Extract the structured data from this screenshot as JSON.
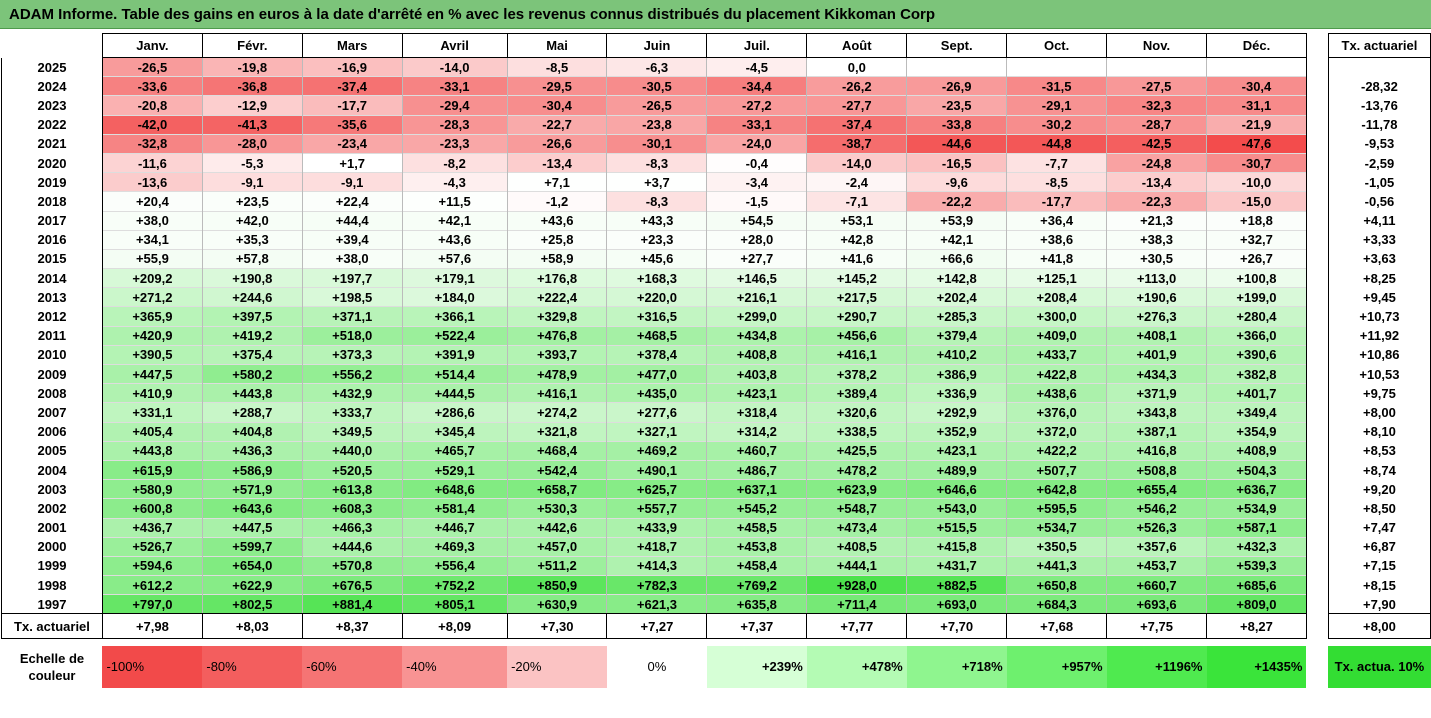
{
  "title": "ADAM Informe. Table des gains en euros à la date d'arrêté en % avec les revenus connus distribués du placement Kikkoman Corp",
  "months": [
    "Janv.",
    "Févr.",
    "Mars",
    "Avril",
    "Mai",
    "Juin",
    "Juil.",
    "Août",
    "Sept.",
    "Oct.",
    "Nov.",
    "Déc."
  ],
  "actuarial_header": "Tx. actuariel",
  "rows": [
    {
      "year": "2025",
      "values": [
        "-26,5",
        "-19,8",
        "-16,9",
        "-14,0",
        "-8,5",
        "-6,3",
        "-4,5",
        "0,0",
        "",
        "",
        "",
        ""
      ],
      "rate": ""
    },
    {
      "year": "2024",
      "values": [
        "-33,6",
        "-36,8",
        "-37,4",
        "-33,1",
        "-29,5",
        "-30,5",
        "-34,4",
        "-26,2",
        "-26,9",
        "-31,5",
        "-27,5",
        "-30,4"
      ],
      "rate": "-28,32"
    },
    {
      "year": "2023",
      "values": [
        "-20,8",
        "-12,9",
        "-17,7",
        "-29,4",
        "-30,4",
        "-26,5",
        "-27,2",
        "-27,7",
        "-23,5",
        "-29,1",
        "-32,3",
        "-31,1"
      ],
      "rate": "-13,76"
    },
    {
      "year": "2022",
      "values": [
        "-42,0",
        "-41,3",
        "-35,6",
        "-28,3",
        "-22,7",
        "-23,8",
        "-33,1",
        "-37,4",
        "-33,8",
        "-30,2",
        "-28,7",
        "-21,9"
      ],
      "rate": "-11,78"
    },
    {
      "year": "2021",
      "values": [
        "-32,8",
        "-28,0",
        "-23,4",
        "-23,3",
        "-26,6",
        "-30,1",
        "-24,0",
        "-38,7",
        "-44,6",
        "-44,8",
        "-42,5",
        "-47,6"
      ],
      "rate": "-9,53"
    },
    {
      "year": "2020",
      "values": [
        "-11,6",
        "-5,3",
        "+1,7",
        "-8,2",
        "-13,4",
        "-8,3",
        "-0,4",
        "-14,0",
        "-16,5",
        "-7,7",
        "-24,8",
        "-30,7"
      ],
      "rate": "-2,59"
    },
    {
      "year": "2019",
      "values": [
        "-13,6",
        "-9,1",
        "-9,1",
        "-4,3",
        "+7,1",
        "+3,7",
        "-3,4",
        "-2,4",
        "-9,6",
        "-8,5",
        "-13,4",
        "-10,0"
      ],
      "rate": "-1,05"
    },
    {
      "year": "2018",
      "values": [
        "+20,4",
        "+23,5",
        "+22,4",
        "+11,5",
        "-1,2",
        "-8,3",
        "-1,5",
        "-7,1",
        "-22,2",
        "-17,7",
        "-22,3",
        "-15,0"
      ],
      "rate": "-0,56"
    },
    {
      "year": "2017",
      "values": [
        "+38,0",
        "+42,0",
        "+44,4",
        "+42,1",
        "+43,6",
        "+43,3",
        "+54,5",
        "+53,1",
        "+53,9",
        "+36,4",
        "+21,3",
        "+18,8"
      ],
      "rate": "+4,11"
    },
    {
      "year": "2016",
      "values": [
        "+34,1",
        "+35,3",
        "+39,4",
        "+43,6",
        "+25,8",
        "+23,3",
        "+28,0",
        "+42,8",
        "+42,1",
        "+38,6",
        "+38,3",
        "+32,7"
      ],
      "rate": "+3,33"
    },
    {
      "year": "2015",
      "values": [
        "+55,9",
        "+57,8",
        "+38,0",
        "+57,6",
        "+58,9",
        "+45,6",
        "+27,7",
        "+41,6",
        "+66,6",
        "+41,8",
        "+30,5",
        "+26,7"
      ],
      "rate": "+3,63"
    },
    {
      "year": "2014",
      "values": [
        "+209,2",
        "+190,8",
        "+197,7",
        "+179,1",
        "+176,8",
        "+168,3",
        "+146,5",
        "+145,2",
        "+142,8",
        "+125,1",
        "+113,0",
        "+100,8"
      ],
      "rate": "+8,25"
    },
    {
      "year": "2013",
      "values": [
        "+271,2",
        "+244,6",
        "+198,5",
        "+184,0",
        "+222,4",
        "+220,0",
        "+216,1",
        "+217,5",
        "+202,4",
        "+208,4",
        "+190,6",
        "+199,0"
      ],
      "rate": "+9,45"
    },
    {
      "year": "2012",
      "values": [
        "+365,9",
        "+397,5",
        "+371,1",
        "+366,1",
        "+329,8",
        "+316,5",
        "+299,0",
        "+290,7",
        "+285,3",
        "+300,0",
        "+276,3",
        "+280,4"
      ],
      "rate": "+10,73"
    },
    {
      "year": "2011",
      "values": [
        "+420,9",
        "+419,2",
        "+518,0",
        "+522,4",
        "+476,8",
        "+468,5",
        "+434,8",
        "+456,6",
        "+379,4",
        "+409,0",
        "+408,1",
        "+366,0"
      ],
      "rate": "+11,92"
    },
    {
      "year": "2010",
      "values": [
        "+390,5",
        "+375,4",
        "+373,3",
        "+391,9",
        "+393,7",
        "+378,4",
        "+408,8",
        "+416,1",
        "+410,2",
        "+433,7",
        "+401,9",
        "+390,6"
      ],
      "rate": "+10,86"
    },
    {
      "year": "2009",
      "values": [
        "+447,5",
        "+580,2",
        "+556,2",
        "+514,4",
        "+478,9",
        "+477,0",
        "+403,8",
        "+378,2",
        "+386,9",
        "+422,8",
        "+434,3",
        "+382,8"
      ],
      "rate": "+10,53"
    },
    {
      "year": "2008",
      "values": [
        "+410,9",
        "+443,8",
        "+432,9",
        "+444,5",
        "+416,1",
        "+435,0",
        "+423,1",
        "+389,4",
        "+336,9",
        "+438,6",
        "+371,9",
        "+401,7"
      ],
      "rate": "+9,75"
    },
    {
      "year": "2007",
      "values": [
        "+331,1",
        "+288,7",
        "+333,7",
        "+286,6",
        "+274,2",
        "+277,6",
        "+318,4",
        "+320,6",
        "+292,9",
        "+376,0",
        "+343,8",
        "+349,4"
      ],
      "rate": "+8,00"
    },
    {
      "year": "2006",
      "values": [
        "+405,4",
        "+404,8",
        "+349,5",
        "+345,4",
        "+321,8",
        "+327,1",
        "+314,2",
        "+338,5",
        "+352,9",
        "+372,0",
        "+387,1",
        "+354,9"
      ],
      "rate": "+8,10"
    },
    {
      "year": "2005",
      "values": [
        "+443,8",
        "+436,3",
        "+440,0",
        "+465,7",
        "+468,4",
        "+469,2",
        "+460,7",
        "+425,5",
        "+423,1",
        "+422,2",
        "+416,8",
        "+408,9"
      ],
      "rate": "+8,53"
    },
    {
      "year": "2004",
      "values": [
        "+615,9",
        "+586,9",
        "+520,5",
        "+529,1",
        "+542,4",
        "+490,1",
        "+486,7",
        "+478,2",
        "+489,9",
        "+507,7",
        "+508,8",
        "+504,3"
      ],
      "rate": "+8,74"
    },
    {
      "year": "2003",
      "values": [
        "+580,9",
        "+571,9",
        "+613,8",
        "+648,6",
        "+658,7",
        "+625,7",
        "+637,1",
        "+623,9",
        "+646,6",
        "+642,8",
        "+655,4",
        "+636,7"
      ],
      "rate": "+9,20"
    },
    {
      "year": "2002",
      "values": [
        "+600,8",
        "+643,6",
        "+608,3",
        "+581,4",
        "+530,3",
        "+557,7",
        "+545,2",
        "+548,7",
        "+543,0",
        "+595,5",
        "+546,2",
        "+534,9"
      ],
      "rate": "+8,50"
    },
    {
      "year": "2001",
      "values": [
        "+436,7",
        "+447,5",
        "+466,3",
        "+446,7",
        "+442,6",
        "+433,9",
        "+458,5",
        "+473,4",
        "+515,5",
        "+534,7",
        "+526,3",
        "+587,1"
      ],
      "rate": "+7,47"
    },
    {
      "year": "2000",
      "values": [
        "+526,7",
        "+599,7",
        "+444,6",
        "+469,3",
        "+457,0",
        "+418,7",
        "+453,8",
        "+408,5",
        "+415,8",
        "+350,5",
        "+357,6",
        "+432,3"
      ],
      "rate": "+6,87"
    },
    {
      "year": "1999",
      "values": [
        "+594,6",
        "+654,0",
        "+570,8",
        "+556,4",
        "+511,2",
        "+414,3",
        "+458,4",
        "+444,1",
        "+431,7",
        "+441,3",
        "+453,7",
        "+539,3"
      ],
      "rate": "+7,15"
    },
    {
      "year": "1998",
      "values": [
        "+612,2",
        "+622,9",
        "+676,5",
        "+752,2",
        "+850,9",
        "+782,3",
        "+769,2",
        "+928,0",
        "+882,5",
        "+650,8",
        "+660,7",
        "+685,6"
      ],
      "rate": "+8,15"
    },
    {
      "year": "1997",
      "values": [
        "+797,0",
        "+802,5",
        "+881,4",
        "+805,1",
        "+630,9",
        "+621,3",
        "+635,8",
        "+711,4",
        "+693,0",
        "+684,3",
        "+693,6",
        "+809,0"
      ],
      "rate": "+7,90"
    }
  ],
  "footer": {
    "label": "Tx. actuariel",
    "values": [
      "+7,98",
      "+8,03",
      "+8,37",
      "+8,09",
      "+7,30",
      "+7,27",
      "+7,37",
      "+7,77",
      "+7,70",
      "+7,68",
      "+7,75",
      "+8,27"
    ],
    "rate": "+8,00"
  },
  "scale": {
    "label": "Echelle de couleur",
    "steps": [
      {
        "label": "-100%",
        "color": "#f24a4a"
      },
      {
        "label": "-80%",
        "color": "#f35e5e"
      },
      {
        "label": "-60%",
        "color": "#f57474"
      },
      {
        "label": "-40%",
        "color": "#f89393"
      },
      {
        "label": "-20%",
        "color": "#fbc3c3"
      },
      {
        "label": "0%",
        "color": "#ffffff"
      },
      {
        "label": "+239%",
        "color": "#d6ffd6"
      },
      {
        "label": "+478%",
        "color": "#b4fbb4"
      },
      {
        "label": "+718%",
        "color": "#8ff58f"
      },
      {
        "label": "+957%",
        "color": "#6ef06e"
      },
      {
        "label": "+1196%",
        "color": "#4fea4f"
      },
      {
        "label": "+1435%",
        "color": "#3ae43a"
      }
    ],
    "rate_legend": "Tx. actua. 10%",
    "rate_legend_color": "#33dd33"
  }
}
